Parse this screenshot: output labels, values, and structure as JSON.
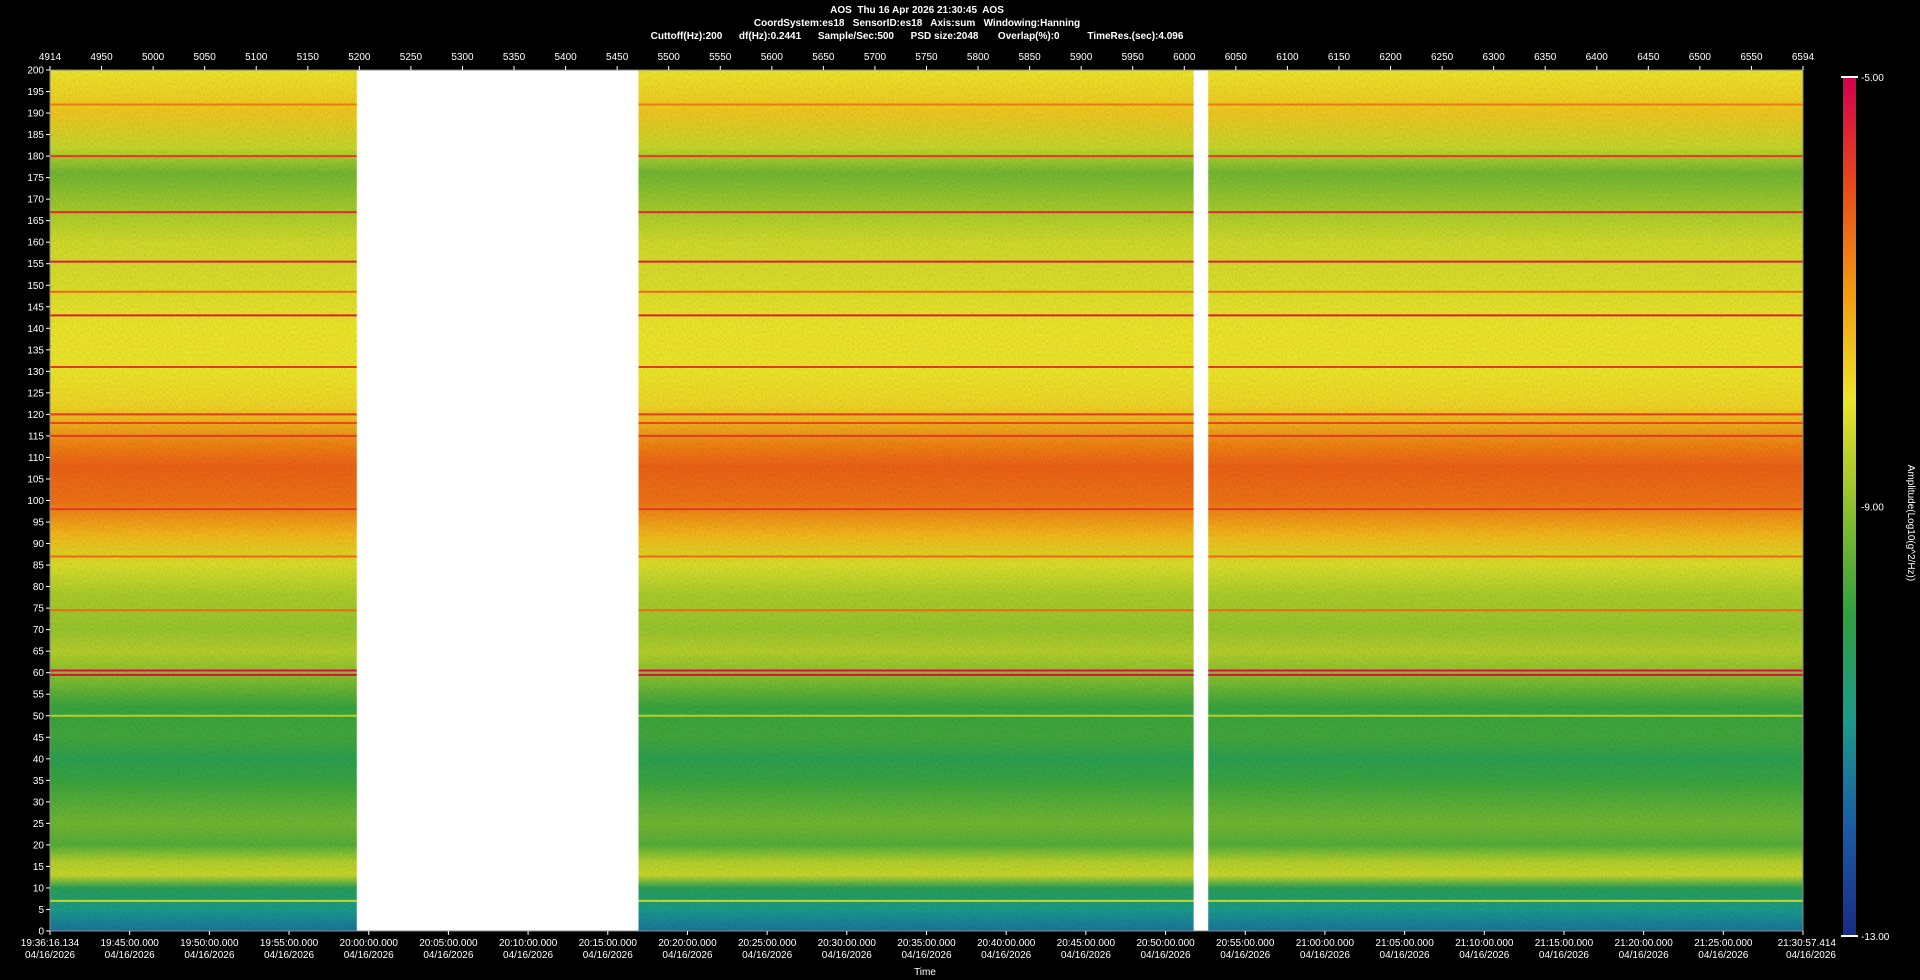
{
  "header": {
    "line1": "AOS  Thu 16 Apr 2026 21:30:45  AOS",
    "line2": "CoordSystem:es18   SensorID:es18   Axis:sum   Windowing:Hanning",
    "line3": "Cuttoff(Hz):200      df(Hz):0.2441      Sample/Sec:500      PSD size:2048       Overlap(%):0          TimeRes.(sec):4.096"
  },
  "chart_data": {
    "type": "heatmap",
    "xlabel": "Time",
    "top_axis_ticks": [
      "4914",
      "4950",
      "5000",
      "5050",
      "5100",
      "5150",
      "5200",
      "5250",
      "5300",
      "5350",
      "5400",
      "5450",
      "5500",
      "5550",
      "5600",
      "5650",
      "5700",
      "5750",
      "5800",
      "5850",
      "5900",
      "5950",
      "6000",
      "6050",
      "6100",
      "6150",
      "6200",
      "6250",
      "6300",
      "6350",
      "6400",
      "6450",
      "6500",
      "6550",
      "6594"
    ],
    "top_axis_range": [
      4914,
      6594
    ],
    "ylim": [
      0,
      200
    ],
    "y_ticks": [
      0,
      5,
      10,
      15,
      20,
      25,
      30,
      35,
      40,
      45,
      50,
      55,
      60,
      65,
      70,
      75,
      80,
      85,
      90,
      95,
      100,
      105,
      110,
      115,
      120,
      125,
      130,
      135,
      140,
      145,
      150,
      155,
      160,
      165,
      170,
      175,
      180,
      185,
      190,
      195,
      200
    ],
    "time_ticks": [
      {
        "t": "19:36:16.134",
        "d": "04/16/2026"
      },
      {
        "t": "19:45:00.000",
        "d": "04/16/2026"
      },
      {
        "t": "19:50:00.000",
        "d": "04/16/2026"
      },
      {
        "t": "19:55:00.000",
        "d": "04/16/2026"
      },
      {
        "t": "20:00:00.000",
        "d": "04/16/2026"
      },
      {
        "t": "20:05:00.000",
        "d": "04/16/2026"
      },
      {
        "t": "20:10:00.000",
        "d": "04/16/2026"
      },
      {
        "t": "20:15:00.000",
        "d": "04/16/2026"
      },
      {
        "t": "20:20:00.000",
        "d": "04/16/2026"
      },
      {
        "t": "20:25:00.000",
        "d": "04/16/2026"
      },
      {
        "t": "20:30:00.000",
        "d": "04/16/2026"
      },
      {
        "t": "20:35:00.000",
        "d": "04/16/2026"
      },
      {
        "t": "20:40:00.000",
        "d": "04/16/2026"
      },
      {
        "t": "20:45:00.000",
        "d": "04/16/2026"
      },
      {
        "t": "20:50:00.000",
        "d": "04/16/2026"
      },
      {
        "t": "20:55:00.000",
        "d": "04/16/2026"
      },
      {
        "t": "21:00:00.000",
        "d": "04/16/2026"
      },
      {
        "t": "21:05:00.000",
        "d": "04/16/2026"
      },
      {
        "t": "21:10:00.000",
        "d": "04/16/2026"
      },
      {
        "t": "21:15:00.000",
        "d": "04/16/2026"
      },
      {
        "t": "21:20:00.000",
        "d": "04/16/2026"
      },
      {
        "t": "21:25:00.000",
        "d": "04/16/2026"
      },
      {
        "t": "21:30:57.414",
        "d": "04/16/2026"
      }
    ],
    "colorbar": {
      "label": "Amplitude(Log10(g^2/Hz))",
      "max": -5.0,
      "mid": -9.0,
      "min": -13.0,
      "ticks": [
        "-5.00",
        "-9.00",
        "-13.00"
      ],
      "colors": [
        "#d4004f",
        "#e84818",
        "#f29a10",
        "#ece42a",
        "#8ec02c",
        "#2fa040",
        "#1a9a8a",
        "#1a5aa8",
        "#1a2a88"
      ]
    },
    "gaps_top_axis": [
      [
        5208,
        5478
      ],
      [
        6010,
        6024
      ]
    ],
    "horizontal_lines_hz": [
      {
        "f": 59.5,
        "level": -5.2
      },
      {
        "f": 60.5,
        "level": -5.2
      },
      {
        "f": 180,
        "level": -5.8
      },
      {
        "f": 167,
        "level": -5.6
      },
      {
        "f": 155.5,
        "level": -5.4
      },
      {
        "f": 143,
        "level": -5.4
      },
      {
        "f": 131,
        "level": -5.8
      },
      {
        "f": 120,
        "level": -5.8
      },
      {
        "f": 118,
        "level": -6.0
      },
      {
        "f": 115,
        "level": -5.8
      },
      {
        "f": 98,
        "level": -5.8
      },
      {
        "f": 74.5,
        "level": -6.4
      },
      {
        "f": 87,
        "level": -6.4
      },
      {
        "f": 148.5,
        "level": -6.4
      },
      {
        "f": 192,
        "level": -6.6
      },
      {
        "f": 50,
        "level": -8.6
      },
      {
        "f": 7,
        "level": -8.4
      }
    ],
    "frequency_profile": [
      {
        "f": 0,
        "level": -11.6
      },
      {
        "f": 5,
        "level": -11.0
      },
      {
        "f": 10,
        "level": -10.3
      },
      {
        "f": 13,
        "level": -8.4
      },
      {
        "f": 16,
        "level": -8.6
      },
      {
        "f": 20,
        "level": -9.6
      },
      {
        "f": 25,
        "level": -9.3
      },
      {
        "f": 30,
        "level": -9.6
      },
      {
        "f": 35,
        "level": -9.9
      },
      {
        "f": 40,
        "level": -10.2
      },
      {
        "f": 45,
        "level": -9.8
      },
      {
        "f": 52,
        "level": -9.9
      },
      {
        "f": 58,
        "level": -9.2
      },
      {
        "f": 65,
        "level": -8.6
      },
      {
        "f": 70,
        "level": -8.9
      },
      {
        "f": 78,
        "level": -8.7
      },
      {
        "f": 85,
        "level": -8.2
      },
      {
        "f": 92,
        "level": -7.4
      },
      {
        "f": 100,
        "level": -6.5
      },
      {
        "f": 108,
        "level": -6.3
      },
      {
        "f": 113,
        "level": -6.7
      },
      {
        "f": 122,
        "level": -7.8
      },
      {
        "f": 130,
        "level": -8.0
      },
      {
        "f": 140,
        "level": -8.0
      },
      {
        "f": 150,
        "level": -8.2
      },
      {
        "f": 160,
        "level": -8.3
      },
      {
        "f": 170,
        "level": -8.9
      },
      {
        "f": 176,
        "level": -9.3
      },
      {
        "f": 182,
        "level": -8.4
      },
      {
        "f": 190,
        "level": -7.6
      },
      {
        "f": 200,
        "level": -8.0
      }
    ]
  }
}
